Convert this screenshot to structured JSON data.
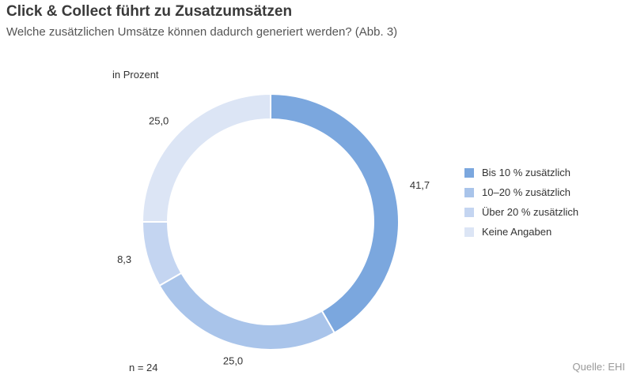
{
  "header": {
    "title": "Click & Collect führt zu Zusatzumsätzen",
    "subtitle": "Welche zusätzlichen Umsätze können dadurch generiert werden? (Abb. 3)"
  },
  "unit_label": "in Prozent",
  "sample_size": "n = 24",
  "source": "Quelle: EHI",
  "chart_data": {
    "type": "pie",
    "style": "donut",
    "title": "Click & Collect führt zu Zusatzumsätzen",
    "subtitle": "Welche zusätzlichen Umsätze können dadurch generiert werden? (Abb. 3)",
    "unit": "in Prozent",
    "categories": [
      "Bis 10 % zusätzlich",
      "10–20 % zusätzlich",
      "Über 20 % zusätzlich",
      "Keine Angaben"
    ],
    "values": [
      41.7,
      25.0,
      8.3,
      25.0
    ],
    "value_labels": [
      "41,7",
      "25,0",
      "8,3",
      "25,0"
    ],
    "colors": [
      "#7ba7de",
      "#a9c4ea",
      "#c4d5f1",
      "#dce5f5"
    ],
    "legend_position": "right",
    "start_angle": "top",
    "direction": "clockwise"
  }
}
